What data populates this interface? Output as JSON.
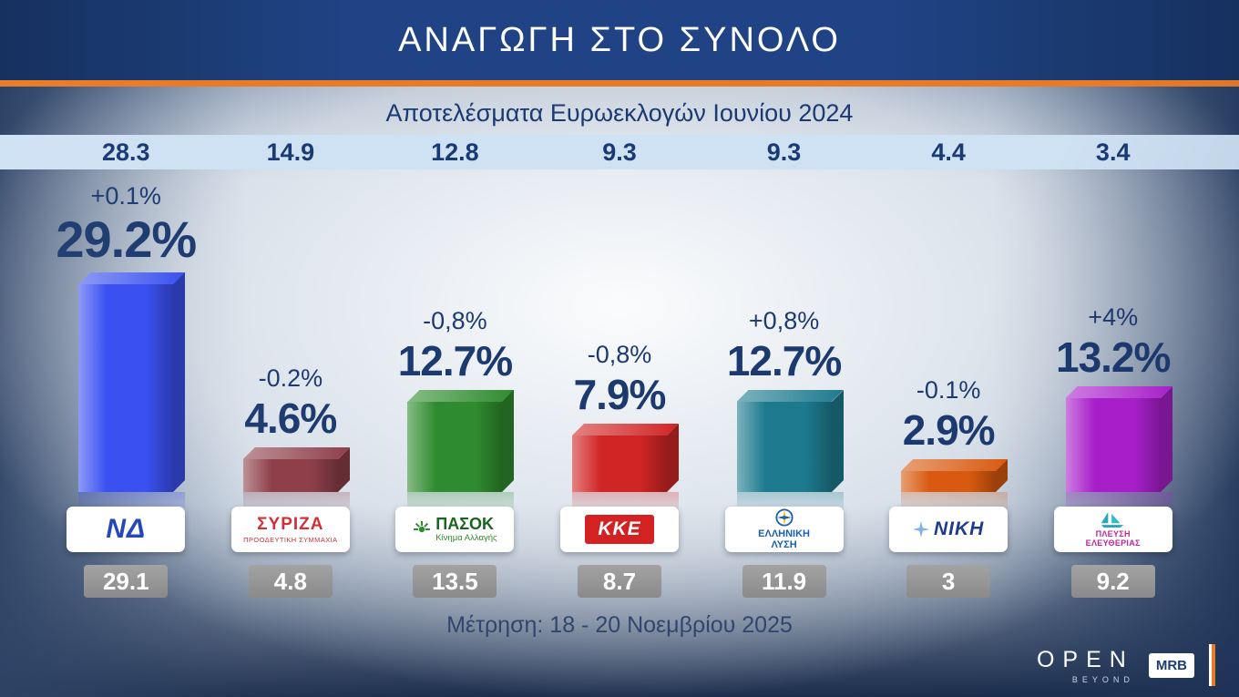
{
  "header": {
    "title": "ΑΝΑΓΩΓΗ ΣΤΟ ΣΥΝΟΛΟ"
  },
  "subtitle": "Αποτελέσματα Ευρωεκλογών Ιουνίου 2024",
  "measurement": "Μέτρηση: 18 - 20 Νοεμβρίου 2025",
  "brand": {
    "open": "OPEN",
    "open_sub": "BEYOND",
    "mrb": "MRB"
  },
  "colors": {
    "header_bg": "#1f4384",
    "accent_orange": "#e87b28",
    "band_bg": "#cfe2f4",
    "navy_text": "#1d3a70",
    "prev_box_bg": "#8a8a8a"
  },
  "chart_data": {
    "type": "bar",
    "title": "ΑΝΑΓΩΓΗ ΣΤΟ ΣΥΝΟΛΟ",
    "subtitle": "Αποτελέσματα Ευρωεκλογών Ιουνίου 2024",
    "note": "Μέτρηση: 18 - 20 Νοεμβρίου 2025",
    "ylim": [
      0,
      30
    ],
    "parties": [
      {
        "party": "ΝΔ",
        "euro_2024": "28.3",
        "change": "+0.1%",
        "current": "29.2%",
        "current_value": 29.2,
        "previous": "29.1",
        "bar_color": "#3a50f0",
        "logo": {
          "text": "ΝΔ",
          "sub": ""
        }
      },
      {
        "party": "ΣΥΡΙΖΑ",
        "euro_2024": "14.9",
        "change": "-0.2%",
        "current": "4.6%",
        "current_value": 4.6,
        "previous": "4.8",
        "bar_color": "#8e3f4a",
        "logo": {
          "text": "ΣΥΡΙΖΑ",
          "sub": "ΠΡΟΟΔΕΥΤΙΚΗ ΣΥΜΜΑΧΙΑ"
        }
      },
      {
        "party": "ΠΑΣΟΚ",
        "euro_2024": "12.8",
        "change": "-0,8%",
        "current": "12.7%",
        "current_value": 12.7,
        "previous": "13.5",
        "bar_color": "#2f8b2f",
        "logo": {
          "text": "ΠΑΣΟΚ",
          "sub": "Κίνημα Αλλαγής"
        }
      },
      {
        "party": "ΚΚΕ",
        "euro_2024": "9.3",
        "change": "-0,8%",
        "current": "7.9%",
        "current_value": 7.9,
        "previous": "8.7",
        "bar_color": "#d02525",
        "logo": {
          "text": "ΚΚΕ",
          "sub": ""
        }
      },
      {
        "party": "ΕΛΛΗΝΙΚΗ ΛΥΣΗ",
        "euro_2024": "9.3",
        "change": "+0,8%",
        "current": "12.7%",
        "current_value": 12.7,
        "previous": "11.9",
        "bar_color": "#1d7a8e",
        "logo": {
          "text": "ΕΛΛΗΝΙΚΗ",
          "sub": "ΛΥΣΗ"
        }
      },
      {
        "party": "ΝΙΚΗ",
        "euro_2024": "4.4",
        "change": "-0.1%",
        "current": "2.9%",
        "current_value": 2.9,
        "previous": "3",
        "bar_color": "#d8590f",
        "logo": {
          "text": "ΝΙΚΗ",
          "sub": ""
        }
      },
      {
        "party": "ΠΛΕΥΣΗ ΕΛΕΥΘΕΡΙΑΣ",
        "euro_2024": "3.4",
        "change": "+4%",
        "current": "13.2%",
        "current_value": 13.2,
        "previous": "9.2",
        "bar_color": "#a81fca",
        "logo": {
          "text": "ΠΛΕΥΣΗ",
          "sub": "ΕΛΕΥΘΕΡΙΑΣ"
        }
      }
    ]
  }
}
